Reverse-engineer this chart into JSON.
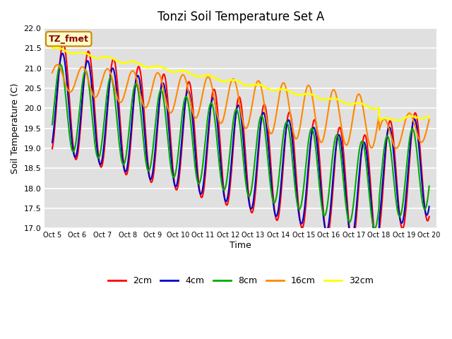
{
  "title": "Tonzi Soil Temperature Set A",
  "xlabel": "Time",
  "ylabel": "Soil Temperature (C)",
  "ylim": [
    17.0,
    22.0
  ],
  "plot_bg_color": "#e0e0e0",
  "annotation_text": "TZ_fmet",
  "annotation_bg": "#ffffcc",
  "annotation_border": "#cc8800",
  "annotation_fg": "#8b0000",
  "series": {
    "2cm": {
      "color": "#ff0000",
      "lw": 1.5
    },
    "4cm": {
      "color": "#0000cc",
      "lw": 1.5
    },
    "8cm": {
      "color": "#00aa00",
      "lw": 1.5
    },
    "16cm": {
      "color": "#ff8800",
      "lw": 1.5
    },
    "32cm": {
      "color": "#ffff00",
      "lw": 2.0
    }
  },
  "xtick_labels": [
    "Oct 5",
    "Oct 6",
    "Oct 7",
    "Oct 8",
    "Oct 9",
    "Oct 10",
    "Oct 11",
    "Oct 12",
    "Oct 13",
    "Oct 14",
    "Oct 15",
    "Oct 16",
    "Oct 17",
    "Oct 18",
    "Oct 19",
    "Oct 20"
  ],
  "ytick_values": [
    17.0,
    17.5,
    18.0,
    18.5,
    19.0,
    19.5,
    20.0,
    20.5,
    21.0,
    21.5,
    22.0
  ],
  "legend_entries": [
    "2cm",
    "4cm",
    "8cm",
    "16cm",
    "32cm"
  ]
}
